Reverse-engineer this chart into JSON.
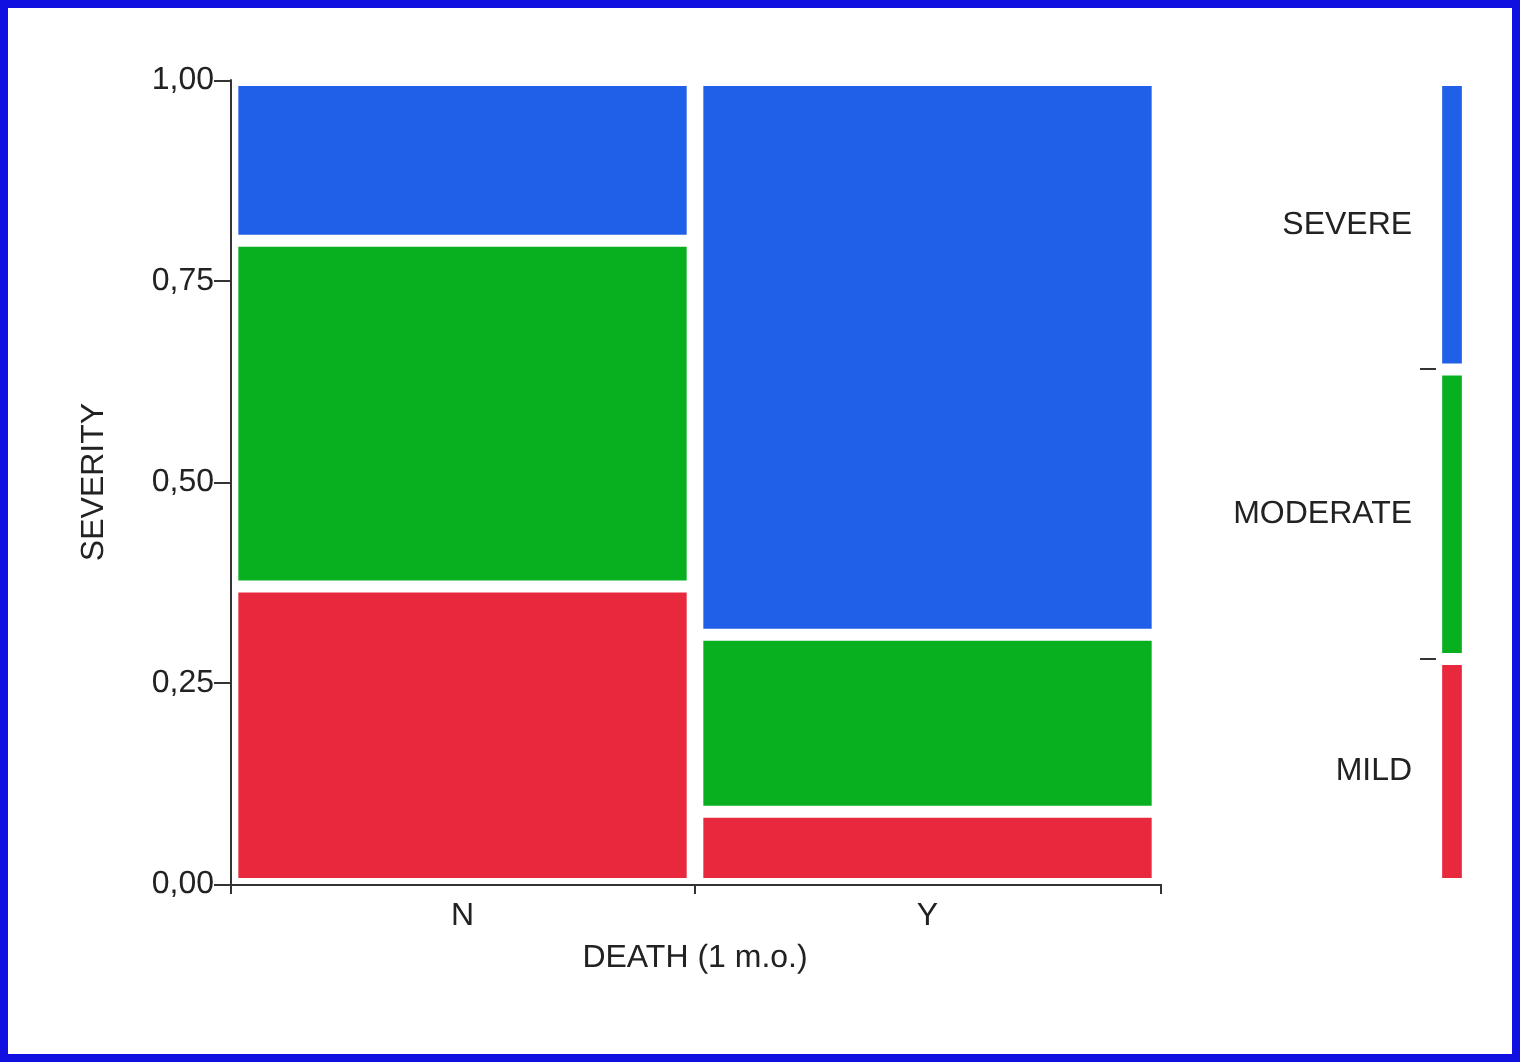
{
  "chart_data": [
    {
      "type": "bar",
      "stacked": true,
      "categories": [
        "N",
        "Y"
      ],
      "xlabel": "DEATH (1 m.o.)",
      "ylabel": "SEVERITY",
      "grid": false,
      "ylim": [
        0,
        1
      ],
      "yticks": [
        {
          "value": 0,
          "label": "0,00"
        },
        {
          "value": 0.25,
          "label": "0,25"
        },
        {
          "value": 0.5,
          "label": "0,50"
        },
        {
          "value": 0.75,
          "label": "0,75"
        },
        {
          "value": 1,
          "label": "1,00"
        }
      ],
      "series": [
        {
          "color": "#e8283c",
          "values": [
            0.37,
            0.09
          ]
        },
        {
          "color": "#08b020",
          "values": [
            0.43,
            0.22
          ]
        },
        {
          "color": "#2060e8",
          "values": [
            0.2,
            0.69
          ]
        }
      ]
    },
    {
      "type": "bar",
      "stacked": true,
      "categories": [
        null
      ],
      "ylim": [
        0,
        1
      ],
      "tick_labels": false,
      "grid": false,
      "yticks": [
        {
          "value": 0.28,
          "label": null
        },
        {
          "value": 0.64,
          "label": null
        }
      ],
      "series": [
        {
          "name": "MILD",
          "color": "#e8283c",
          "values": [
            0.28
          ]
        },
        {
          "name": "MODERATE",
          "color": "#08b020",
          "values": [
            0.36
          ]
        },
        {
          "name": "SEVERE",
          "color": "#2060e8",
          "values": [
            0.36
          ]
        }
      ]
    }
  ]
}
